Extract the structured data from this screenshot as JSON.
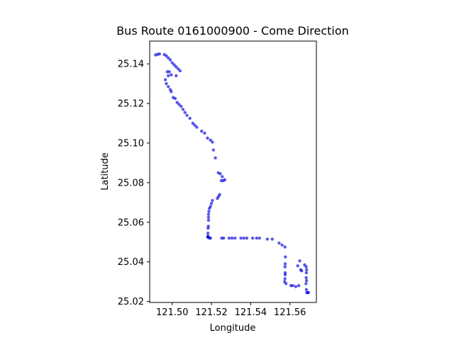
{
  "chart_data": {
    "type": "scatter",
    "title": "Bus Route 0161000900 - Come Direction",
    "xlabel": "Longitude",
    "ylabel": "Latitude",
    "xlim": [
      121.4885,
      121.5735
    ],
    "ylim": [
      25.0195,
      25.1515
    ],
    "xticks": [
      "121.50",
      "121.52",
      "121.54",
      "121.56"
    ],
    "xtick_values": [
      121.5,
      121.52,
      121.54,
      121.56
    ],
    "yticks": [
      "25.02",
      "25.04",
      "25.06",
      "25.08",
      "25.10",
      "25.12",
      "25.14"
    ],
    "ytick_values": [
      25.02,
      25.04,
      25.06,
      25.08,
      25.1,
      25.12,
      25.14
    ],
    "grid": false,
    "marker_color": "#0000dd",
    "series": [
      {
        "name": "",
        "x": [
          121.4915,
          121.4925,
          121.4935,
          121.496,
          121.497,
          121.498,
          121.499,
          121.5,
          121.501,
          121.502,
          121.504,
          121.503,
          121.502,
          121.4995,
          121.4985,
          121.4975,
          121.498,
          121.4965,
          121.497,
          121.498,
          121.499,
          121.4995,
          121.5005,
          121.5015,
          121.5025,
          121.5035,
          121.5045,
          121.5055,
          121.5065,
          121.5075,
          121.509,
          121.5105,
          121.5115,
          121.5125,
          121.515,
          121.5165,
          121.518,
          121.5195,
          121.5205,
          121.521,
          121.522,
          121.5235,
          121.5245,
          121.5255,
          121.5268,
          121.526,
          121.525,
          121.5242,
          121.5236,
          121.523,
          121.5205,
          121.52,
          121.5195,
          121.519,
          121.5187,
          121.5185,
          121.5185,
          121.5185,
          121.5184,
          121.5183,
          121.5182,
          121.5182,
          121.5181,
          121.5183,
          121.519,
          121.5195,
          121.5252,
          121.5262,
          121.529,
          121.5305,
          121.532,
          121.535,
          121.5365,
          121.538,
          121.541,
          121.543,
          121.5445,
          121.5485,
          121.551,
          121.5545,
          121.556,
          121.5575,
          121.5577,
          121.5576,
          121.5575,
          121.5576,
          121.5576,
          121.5575,
          121.5573,
          121.558,
          121.5605,
          121.5615,
          121.563,
          121.5645,
          121.5655,
          121.564,
          121.565,
          121.566,
          121.5675,
          121.5683,
          121.5685,
          121.5684,
          121.5683,
          121.5685,
          121.5682,
          121.5684,
          121.5686,
          121.569,
          121.5695
        ],
        "y": [
          25.1445,
          25.1448,
          25.145,
          25.1447,
          25.144,
          25.143,
          25.142,
          25.1405,
          25.1395,
          25.1385,
          25.1365,
          25.1375,
          25.134,
          25.1345,
          25.136,
          25.136,
          25.134,
          25.132,
          25.13,
          25.1285,
          25.127,
          25.126,
          25.123,
          25.1225,
          25.1205,
          25.1195,
          25.1185,
          25.117,
          25.1155,
          25.114,
          25.1125,
          25.11,
          25.109,
          25.108,
          25.106,
          25.105,
          25.1025,
          25.1015,
          25.1005,
          25.0965,
          25.0925,
          25.085,
          25.0845,
          25.083,
          25.0815,
          25.081,
          25.081,
          25.074,
          25.073,
          25.072,
          25.071,
          25.0695,
          25.068,
          25.067,
          25.0655,
          25.064,
          25.0625,
          25.061,
          25.058,
          25.057,
          25.0545,
          25.053,
          25.0525,
          25.0525,
          25.052,
          25.052,
          25.052,
          25.052,
          25.052,
          25.052,
          25.052,
          25.052,
          25.052,
          25.052,
          25.052,
          25.052,
          25.052,
          25.0515,
          25.0515,
          25.0495,
          25.0485,
          25.0475,
          25.0425,
          25.039,
          25.0375,
          25.0345,
          25.0335,
          25.0315,
          25.03,
          25.029,
          25.028,
          25.028,
          25.0275,
          25.028,
          25.036,
          25.038,
          25.0405,
          25.0355,
          25.0385,
          25.0375,
          25.036,
          25.0345,
          25.032,
          25.0305,
          25.029,
          25.026,
          25.0245,
          25.0245,
          25.0245
        ]
      }
    ]
  }
}
